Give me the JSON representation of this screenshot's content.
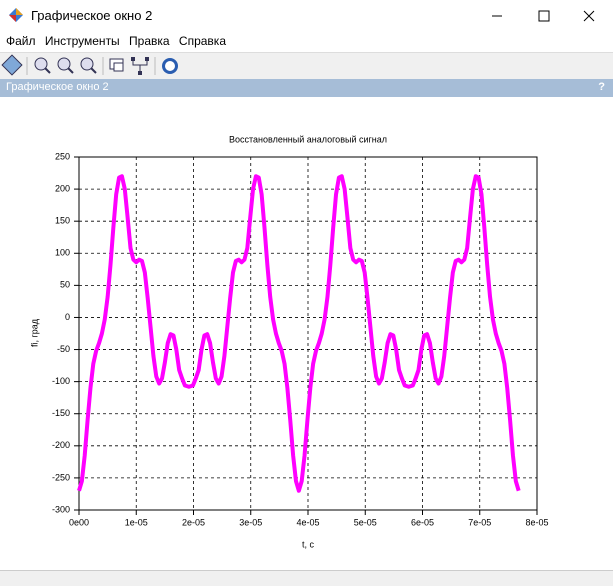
{
  "window": {
    "title": "Графическое окно 2",
    "menu": [
      "Файл",
      "Инструменты",
      "Правка",
      "Справка"
    ],
    "panel_title": "Графическое окно 2",
    "help": "?"
  },
  "chart_data": {
    "type": "line",
    "title": "Восстановленный аналоговый сигнал",
    "x_label": "t, c",
    "y_label": "fi, град",
    "color": "#ff00ff",
    "grid": true,
    "xlim": [
      0,
      8e-05
    ],
    "ylim": [
      -300,
      250
    ],
    "xticks": [
      {
        "value": 0,
        "label": "0e00"
      },
      {
        "value": 1e-05,
        "label": "1e-05"
      },
      {
        "value": 2e-05,
        "label": "2e-05"
      },
      {
        "value": 3e-05,
        "label": "3e-05"
      },
      {
        "value": 4e-05,
        "label": "4e-05"
      },
      {
        "value": 5e-05,
        "label": "5e-05"
      },
      {
        "value": 6e-05,
        "label": "6e-05"
      },
      {
        "value": 7e-05,
        "label": "7e-05"
      },
      {
        "value": 8e-05,
        "label": "8e-05"
      }
    ],
    "yticks": [
      250,
      200,
      150,
      100,
      50,
      0,
      -50,
      -100,
      -150,
      -200,
      -250,
      -300
    ],
    "x": [
      0,
      5e-07,
      1e-06,
      1.5e-06,
      2e-06,
      2.5e-06,
      3e-06,
      3.5e-06,
      4e-06,
      4.5e-06,
      5e-06,
      5.5e-06,
      6e-06,
      6.5e-06,
      7e-06,
      7.5e-06,
      8e-06,
      8.5e-06,
      9e-06,
      9.5e-06,
      1e-05,
      1.05e-05,
      1.1e-05,
      1.15e-05,
      1.2e-05,
      1.25e-05,
      1.3e-05,
      1.35e-05,
      1.4e-05,
      1.45e-05,
      1.5e-05,
      1.55e-05,
      1.6e-05,
      1.65e-05,
      1.7e-05,
      1.75e-05,
      1.8e-05,
      1.85e-05,
      1.92e-05,
      1.99e-05,
      2.04e-05,
      2.09e-05,
      2.14e-05,
      2.19e-05,
      2.24e-05,
      2.29e-05,
      2.34e-05,
      2.39e-05,
      2.44e-05,
      2.49e-05,
      2.54e-05,
      2.59e-05,
      2.64e-05,
      2.69e-05,
      2.74e-05,
      2.79e-05,
      2.84e-05,
      2.89e-05,
      2.94e-05,
      2.99e-05,
      3.04e-05,
      3.09e-05,
      3.14e-05,
      3.19e-05,
      3.24e-05,
      3.29e-05,
      3.34e-05,
      3.39e-05,
      3.44e-05,
      3.49e-05,
      3.54e-05,
      3.59e-05,
      3.64e-05,
      3.69e-05,
      3.74e-05,
      3.79e-05,
      3.84e-05,
      3.89e-05,
      3.94e-05,
      3.99e-05,
      4.04e-05,
      4.09e-05,
      4.14e-05,
      4.19e-05,
      4.24e-05,
      4.29e-05,
      4.34e-05,
      4.39e-05,
      4.44e-05,
      4.49e-05,
      4.54e-05,
      4.59e-05,
      4.64e-05,
      4.69e-05,
      4.74e-05,
      4.79e-05,
      4.84e-05,
      4.89e-05,
      4.94e-05,
      4.99e-05,
      5.04e-05,
      5.09e-05,
      5.14e-05,
      5.19e-05,
      5.24e-05,
      5.29e-05,
      5.34e-05,
      5.39e-05,
      5.44e-05,
      5.49e-05,
      5.54e-05,
      5.59e-05,
      5.64e-05,
      5.69e-05,
      5.76e-05,
      5.83e-05,
      5.88e-05,
      5.93e-05,
      5.98e-05,
      6.03e-05,
      6.08e-05,
      6.13e-05,
      6.18e-05,
      6.23e-05,
      6.28e-05,
      6.33e-05,
      6.38e-05,
      6.43e-05,
      6.48e-05,
      6.53e-05,
      6.58e-05,
      6.63e-05,
      6.68e-05,
      6.73e-05,
      6.78e-05,
      6.83e-05,
      6.88e-05,
      6.93e-05,
      6.98e-05,
      7.03e-05,
      7.08e-05,
      7.13e-05,
      7.18e-05,
      7.23e-05,
      7.28e-05,
      7.33e-05,
      7.38e-05,
      7.43e-05,
      7.48e-05,
      7.53e-05,
      7.58e-05,
      7.63e-05,
      7.68e-05
    ],
    "values": [
      -270,
      -255,
      -215,
      -160,
      -110,
      -72,
      -52,
      -40,
      -25,
      -3,
      32,
      82,
      140,
      192,
      218,
      220,
      200,
      155,
      108,
      90,
      86,
      90,
      88,
      70,
      30,
      -15,
      -60,
      -92,
      -103,
      -95,
      -70,
      -40,
      -26,
      -28,
      -50,
      -82,
      -95,
      -106,
      -108,
      -106,
      -95,
      -82,
      -50,
      -28,
      -26,
      -40,
      -70,
      -95,
      -103,
      -92,
      -60,
      -15,
      30,
      70,
      88,
      90,
      86,
      90,
      108,
      155,
      200,
      220,
      218,
      192,
      140,
      82,
      32,
      -3,
      -25,
      -40,
      -52,
      -72,
      -110,
      -160,
      -215,
      -255,
      -270,
      -255,
      -215,
      -160,
      -110,
      -72,
      -52,
      -40,
      -25,
      -3,
      32,
      82,
      140,
      192,
      218,
      220,
      200,
      155,
      108,
      90,
      86,
      90,
      88,
      70,
      30,
      -15,
      -60,
      -92,
      -103,
      -95,
      -70,
      -40,
      -26,
      -28,
      -50,
      -82,
      -95,
      -106,
      -108,
      -106,
      -95,
      -82,
      -50,
      -28,
      -26,
      -40,
      -70,
      -95,
      -103,
      -92,
      -60,
      -15,
      30,
      70,
      88,
      90,
      86,
      90,
      108,
      155,
      200,
      220,
      218,
      192,
      140,
      82,
      32,
      -3,
      -25,
      -40,
      -52,
      -72,
      -110,
      -160,
      -215,
      -255,
      -270
    ]
  }
}
